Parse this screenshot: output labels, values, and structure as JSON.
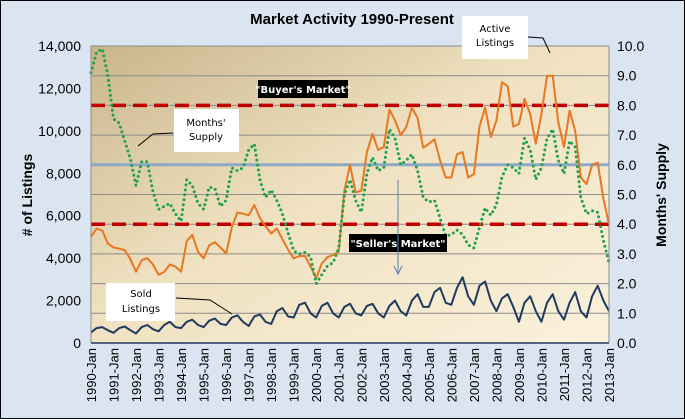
{
  "chart_data": {
    "type": "line",
    "title": "Market Activity  1990-Present",
    "ylabel_left": "# of Listings",
    "ylabel_right": "Months' Supply",
    "ylim_left": [
      0,
      14000
    ],
    "ylim_right": [
      0,
      10
    ],
    "yticks_left": [
      "0",
      "2,000",
      "4,000",
      "6,000",
      "8,000",
      "10,000",
      "12,000",
      "14,000"
    ],
    "yticks_right": [
      "0.0",
      "1.0",
      "2.0",
      "3.0",
      "4.0",
      "5.0",
      "6.0",
      "7.0",
      "8.0",
      "9.0",
      "10.0"
    ],
    "xticks": [
      "1990-Jan",
      "1991-Jan",
      "1992-Jan",
      "1993-Jan",
      "1994-Jan",
      "1995-Jan",
      "1996-Jan",
      "1997-Jan",
      "1998-Jan",
      "1999-Jan",
      "2000-Jan",
      "2001-Jan",
      "2002-Jan",
      "2003-Jan",
      "2004-Jan",
      "2005-Jan",
      "2006-Jan",
      "2007-Jan",
      "2008-Jan",
      "2009-Jan",
      "2010-Jan",
      "2011-Jan",
      "2012-Jan",
      "2013-Jan"
    ],
    "x_sampling": "quarterly (Jan, Apr, Jul, Oct), 1990-Jan to 2013-Jan",
    "grid": "horizontal, at right-axis ticks",
    "series": [
      {
        "name": "Active Listings",
        "axis": "left",
        "color": "#e87722",
        "style": "solid",
        "values": [
          5010,
          5390,
          5300,
          4690,
          4500,
          4450,
          4380,
          3950,
          3360,
          3900,
          4000,
          3700,
          3210,
          3350,
          3700,
          3600,
          3360,
          4800,
          5100,
          4300,
          3990,
          4600,
          4750,
          4500,
          4220,
          5450,
          6150,
          6100,
          6020,
          6500,
          5900,
          5500,
          5160,
          5400,
          4900,
          4400,
          3990,
          4100,
          4100,
          3600,
          3050,
          3750,
          4050,
          4150,
          4300,
          7200,
          8400,
          7100,
          7180,
          9000,
          9850,
          9100,
          9240,
          11000,
          10500,
          9800,
          10180,
          11100,
          10600,
          9200,
          9390,
          9600,
          8600,
          7800,
          7800,
          8900,
          9000,
          7800,
          7960,
          10200,
          11100,
          9700,
          10480,
          12300,
          12100,
          10200,
          10320,
          11500,
          10800,
          9400,
          10780,
          12600,
          12600,
          10400,
          9240,
          10950,
          10000,
          7800,
          7490,
          8400,
          8500,
          6800,
          5600
        ]
      },
      {
        "name": "Months' Supply",
        "axis": "right",
        "color": "#22a04b",
        "style": "dotted",
        "values": [
          9.1,
          9.8,
          9.9,
          9.0,
          7.55,
          7.4,
          6.8,
          6.2,
          5.3,
          6.1,
          6.1,
          5.1,
          4.5,
          4.6,
          4.7,
          4.35,
          4.1,
          5.5,
          5.3,
          4.7,
          4.5,
          5.25,
          5.2,
          4.6,
          4.8,
          5.9,
          5.8,
          5.9,
          6.5,
          6.7,
          5.5,
          4.9,
          5.15,
          4.8,
          4.35,
          3.7,
          3.1,
          3.0,
          3.05,
          2.9,
          2.0,
          2.3,
          2.6,
          2.7,
          3.2,
          5.0,
          5.5,
          4.8,
          4.4,
          5.7,
          6.25,
          5.8,
          5.9,
          7.2,
          6.9,
          6.0,
          6.15,
          6.35,
          5.8,
          4.9,
          4.75,
          4.8,
          4.2,
          3.6,
          3.65,
          3.8,
          3.65,
          3.3,
          3.2,
          3.9,
          4.55,
          4.3,
          4.65,
          5.6,
          6.0,
          5.9,
          5.7,
          6.9,
          6.5,
          5.5,
          5.9,
          6.9,
          7.2,
          6.15,
          5.7,
          6.8,
          6.6,
          4.9,
          4.35,
          4.45,
          4.4,
          3.45,
          2.7
        ]
      },
      {
        "name": "Sold Listings",
        "axis": "left",
        "color": "#1f3a5f",
        "style": "solid",
        "values": [
          500,
          700,
          750,
          600,
          480,
          700,
          780,
          600,
          450,
          750,
          850,
          650,
          550,
          850,
          1000,
          750,
          700,
          1000,
          1100,
          850,
          750,
          1050,
          1150,
          900,
          850,
          1200,
          1300,
          1000,
          800,
          1250,
          1350,
          1000,
          900,
          1500,
          1650,
          1250,
          1200,
          1800,
          1900,
          1400,
          1200,
          1750,
          1900,
          1400,
          1200,
          1700,
          1850,
          1400,
          1300,
          1750,
          1850,
          1400,
          1200,
          1750,
          2000,
          1500,
          1300,
          2000,
          2300,
          1700,
          1700,
          2400,
          2600,
          1900,
          1800,
          2600,
          3100,
          2200,
          1800,
          2700,
          2900,
          2000,
          1500,
          2100,
          2300,
          1700,
          1000,
          1900,
          2200,
          1500,
          1000,
          1900,
          2300,
          1500,
          1100,
          1900,
          2400,
          1500,
          1200,
          2200,
          2700,
          2000,
          1500
        ]
      }
    ],
    "reference_lines": [
      {
        "label": "\"Buyer's Market\"",
        "value": 8.0,
        "axis": "right",
        "color": "#c00000",
        "style": "dashed"
      },
      {
        "label": "\"Seller's Market\"",
        "value": 4.0,
        "axis": "right",
        "color": "#c00000",
        "style": "dashed"
      },
      {
        "label": "",
        "value": 6.0,
        "axis": "right",
        "color": "#8ea9c8",
        "style": "solid"
      }
    ],
    "annotations": {
      "months_supply": [
        "Months'",
        "Supply"
      ],
      "active_listings": [
        "Active",
        "Listings"
      ],
      "sold_listings": [
        "Sold",
        "Listings"
      ]
    },
    "legend": "none (callout labels)"
  }
}
